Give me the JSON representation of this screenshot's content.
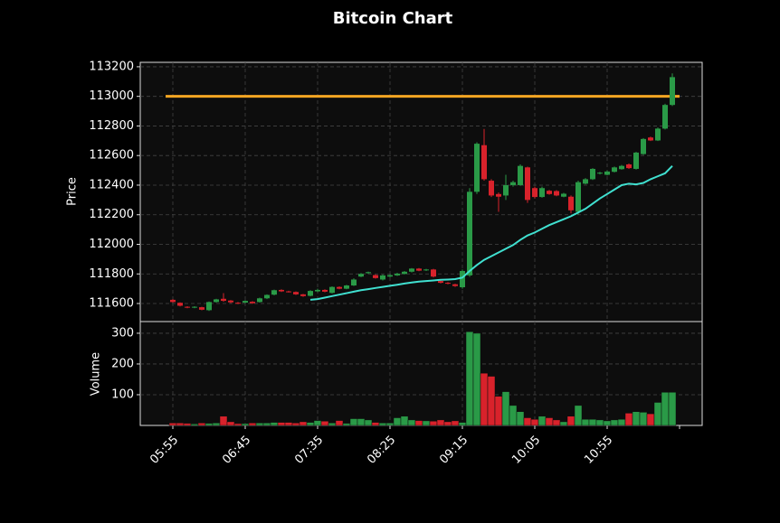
{
  "chart_data": {
    "type": "candlestick",
    "title": "Bitcoin Chart",
    "ylabel": "Price",
    "categories": [
      "05:55",
      null,
      null,
      null,
      null,
      null,
      null,
      null,
      null,
      null,
      "06:45",
      null,
      null,
      null,
      null,
      null,
      null,
      null,
      null,
      null,
      "07:35",
      null,
      null,
      null,
      null,
      null,
      null,
      null,
      null,
      null,
      "08:25",
      null,
      null,
      null,
      null,
      null,
      null,
      null,
      null,
      null,
      "09:15",
      null,
      null,
      null,
      null,
      null,
      null,
      null,
      null,
      null,
      "10:05",
      null,
      null,
      null,
      null,
      null,
      null,
      null,
      null,
      null,
      "10:55",
      null,
      null,
      null,
      null,
      null,
      null,
      null,
      null,
      null
    ],
    "open": [
      111625,
      111605,
      111578,
      111572,
      111575,
      111555,
      111610,
      111632,
      111620,
      111605,
      111606,
      111612,
      111610,
      111635,
      111660,
      111692,
      111682,
      111678,
      111662,
      111652,
      111682,
      111692,
      111672,
      111712,
      111700,
      111722,
      111782,
      111805,
      111792,
      111762,
      111782,
      111790,
      111800,
      111815,
      111836,
      111824,
      111830,
      111752,
      111740,
      111730,
      111710,
      111790,
      112355,
      112670,
      112430,
      112340,
      112330,
      112400,
      112400,
      112520,
      112380,
      112320,
      112362,
      112360,
      112322,
      112322,
      112220,
      112410,
      112440,
      112478,
      112470,
      112490,
      112508,
      112540,
      112510,
      112610,
      112722,
      112702,
      112782,
      112942
    ],
    "high": [
      111630,
      111608,
      111582,
      111582,
      111578,
      111614,
      111632,
      111670,
      111624,
      111610,
      111622,
      111616,
      111640,
      111662,
      111694,
      111696,
      111686,
      111682,
      111665,
      111690,
      111700,
      111696,
      111716,
      111716,
      111726,
      111770,
      111806,
      111816,
      111796,
      111796,
      111796,
      111808,
      111820,
      111840,
      111840,
      111834,
      111834,
      111756,
      111744,
      111734,
      111830,
      112380,
      112690,
      112780,
      112440,
      112350,
      112470,
      112430,
      112540,
      112525,
      112390,
      112390,
      112368,
      112366,
      112348,
      112330,
      112430,
      112448,
      112515,
      112490,
      112498,
      112526,
      112536,
      112546,
      112625,
      112718,
      112728,
      112790,
      112950,
      113155
    ],
    "low": [
      111606,
      111580,
      111568,
      111568,
      111554,
      111550,
      111606,
      111612,
      111602,
      111596,
      111602,
      111598,
      111606,
      111630,
      111655,
      111678,
      111674,
      111658,
      111645,
      111648,
      111678,
      111676,
      111668,
      111696,
      111696,
      111718,
      111778,
      111800,
      111768,
      111756,
      111778,
      111786,
      111796,
      111810,
      111818,
      111820,
      111776,
      111736,
      111730,
      111712,
      111700,
      111780,
      112340,
      112430,
      112320,
      112220,
      112300,
      112390,
      112395,
      112280,
      112310,
      112315,
      112335,
      112325,
      112318,
      112210,
      112200,
      112405,
      112435,
      112472,
      112466,
      112486,
      112504,
      112510,
      112505,
      112605,
      112698,
      112698,
      112776,
      112935
    ],
    "close": [
      111610,
      111585,
      111572,
      111578,
      111558,
      111610,
      111628,
      111618,
      111608,
      111600,
      111618,
      111602,
      111635,
      111658,
      111690,
      111682,
      111678,
      111662,
      111650,
      111685,
      111692,
      111680,
      111712,
      111700,
      111722,
      111762,
      111800,
      111812,
      111772,
      111790,
      111792,
      111802,
      111815,
      111836,
      111822,
      111830,
      111782,
      111740,
      111734,
      111718,
      111820,
      112355,
      112680,
      112440,
      112330,
      112322,
      112400,
      112420,
      112530,
      112300,
      112320,
      112380,
      112340,
      112330,
      112342,
      112230,
      112420,
      112440,
      112510,
      112484,
      112492,
      112520,
      112530,
      112515,
      112620,
      112712,
      112702,
      112782,
      112942,
      113130
    ],
    "up_color": "#2a9a47",
    "down_color": "#d8222b",
    "ylim": [
      111478,
      113230
    ],
    "yticks": [
      111600,
      111800,
      112000,
      112200,
      112400,
      112600,
      112800,
      113000,
      113200
    ],
    "grid": true,
    "ma": {
      "color": "#40e0d0",
      "values": [
        null,
        null,
        null,
        null,
        null,
        null,
        null,
        null,
        null,
        null,
        null,
        null,
        null,
        null,
        null,
        null,
        null,
        null,
        null,
        111625,
        111630,
        111640,
        111650,
        111660,
        111670,
        111680,
        111690,
        111697,
        111705,
        111712,
        111720,
        111727,
        111735,
        111742,
        111748,
        111752,
        111756,
        111760,
        111762,
        111765,
        111775,
        111820,
        111860,
        111895,
        111920,
        111945,
        111970,
        111995,
        112030,
        112060,
        112080,
        112105,
        112130,
        112150,
        112170,
        112190,
        112215,
        112240,
        112275,
        112310,
        112340,
        112370,
        112400,
        112410,
        112405,
        112415,
        112440,
        112460,
        112480,
        112530
      ]
    },
    "hline": {
      "value": 113000,
      "color": "#f5a623"
    },
    "volume": {
      "ylabel": "Volume",
      "ylim": [
        0,
        338
      ],
      "yticks": [
        100,
        200,
        300
      ],
      "values": [
        8,
        8,
        7,
        5,
        8,
        7,
        8,
        30,
        12,
        6,
        6,
        8,
        8,
        8,
        10,
        10,
        10,
        8,
        12,
        10,
        16,
        14,
        8,
        16,
        7,
        22,
        22,
        18,
        10,
        8,
        8,
        25,
        30,
        18,
        16,
        15,
        14,
        18,
        12,
        15,
        10,
        305,
        300,
        170,
        160,
        95,
        110,
        65,
        45,
        25,
        20,
        30,
        25,
        18,
        12,
        30,
        65,
        20,
        20,
        18,
        15,
        18,
        20,
        40,
        45,
        43,
        38,
        75,
        108,
        108
      ]
    }
  }
}
